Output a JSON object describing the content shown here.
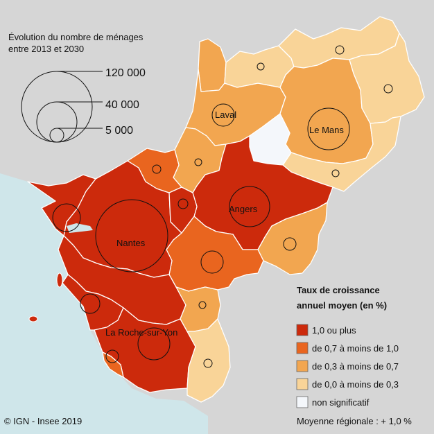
{
  "size_legend": {
    "title_line1": "Évolution du nombre de ménages",
    "title_line2": "entre 2013 et 2030",
    "items": [
      {
        "label": "120 000",
        "value": 120000
      },
      {
        "label": "40 000",
        "value": 40000
      },
      {
        "label": "5 000",
        "value": 5000
      }
    ]
  },
  "color_legend": {
    "title_line1": "Taux de croissance",
    "title_line2": "annuel moyen (en %)",
    "classes": [
      {
        "label": "1,0 ou plus",
        "color": "#cc2a0c"
      },
      {
        "label": "de 0,7 à moins de 1,0",
        "color": "#e9651f"
      },
      {
        "label": "de 0,3 à moins de 0,7",
        "color": "#f2a650"
      },
      {
        "label": "de 0,0 à moins de 0,3",
        "color": "#f9d498"
      },
      {
        "label": "non significatif",
        "color": "#f4f7fb"
      }
    ]
  },
  "cities": [
    {
      "name": "Laval"
    },
    {
      "name": "Le Mans"
    },
    {
      "name": "Angers"
    },
    {
      "name": "Nantes"
    },
    {
      "name": "La Roche-sur-Yon"
    }
  ],
  "footer": {
    "source": "© IGN - Insee 2019",
    "regional_average": "Moyenne régionale : + 1,0 %"
  },
  "colors": {
    "background": "#d6d6d6",
    "sea": "#cfe6ea",
    "border": "#ffffff"
  }
}
